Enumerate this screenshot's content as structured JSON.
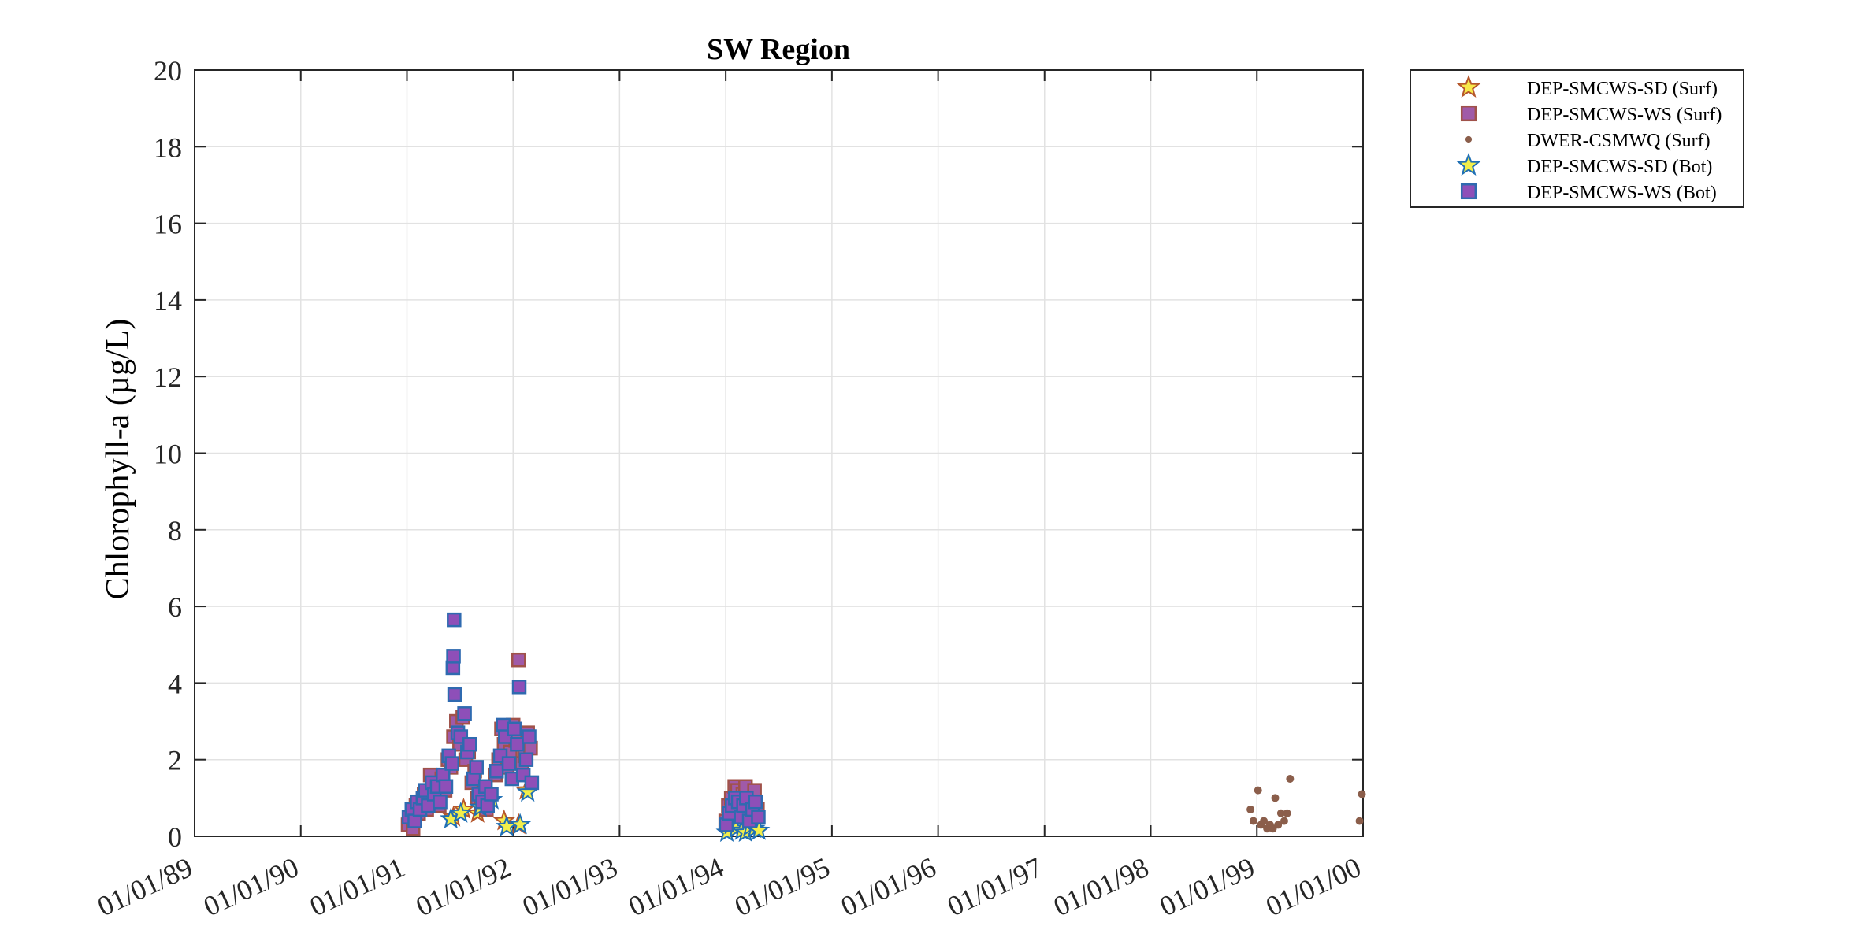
{
  "chart_data": {
    "type": "scatter",
    "title": "SW Region",
    "xlabel": "",
    "ylabel": "Chlorophyll-a (µg/L)",
    "x_is_date": true,
    "xlim": [
      "1989-01-01",
      "2000-01-01"
    ],
    "ylim": [
      0,
      20
    ],
    "xticks": [
      "1989-01-01",
      "1990-01-01",
      "1991-01-01",
      "1992-01-01",
      "1993-01-01",
      "1994-01-01",
      "1995-01-01",
      "1996-01-01",
      "1997-01-01",
      "1998-01-01",
      "1999-01-01",
      "2000-01-01"
    ],
    "xtick_labels": [
      "01/01/89",
      "01/01/90",
      "01/01/91",
      "01/01/92",
      "01/01/93",
      "01/01/94",
      "01/01/95",
      "01/01/96",
      "01/01/97",
      "01/01/98",
      "01/01/99",
      "01/01/00"
    ],
    "yticks": [
      0,
      2,
      4,
      6,
      8,
      10,
      12,
      14,
      16,
      18,
      20
    ],
    "ytick_labels": [
      "0",
      "2",
      "4",
      "6",
      "8",
      "10",
      "12",
      "14",
      "16",
      "18",
      "20"
    ],
    "grid": true,
    "legend_position": "outside-top-right",
    "series": [
      {
        "name": "DEP-SMCWS-SD (Surf)",
        "marker": "star",
        "fill": "#f7e94a",
        "stroke": "#b5562b",
        "points": [
          [
            "1991-06-10",
            0.5
          ],
          [
            "1991-07-15",
            0.7
          ],
          [
            "1991-09-01",
            0.6
          ],
          [
            "1991-10-05",
            0.9
          ],
          [
            "1991-12-01",
            0.4
          ],
          [
            "1992-01-20",
            0.3
          ],
          [
            "1992-02-15",
            1.2
          ]
        ]
      },
      {
        "name": "DEP-SMCWS-WS (Surf)",
        "marker": "square",
        "fill": "#a05aa8",
        "stroke": "#a0524a",
        "points": [
          [
            "1991-01-05",
            0.3
          ],
          [
            "1991-01-12",
            0.5
          ],
          [
            "1991-01-22",
            0.2
          ],
          [
            "1991-02-01",
            0.8
          ],
          [
            "1991-02-10",
            0.6
          ],
          [
            "1991-02-20",
            0.9
          ],
          [
            "1991-03-01",
            1.1
          ],
          [
            "1991-03-10",
            0.7
          ],
          [
            "1991-03-22",
            1.6
          ],
          [
            "1991-04-01",
            1.0
          ],
          [
            "1991-04-12",
            1.3
          ],
          [
            "1991-04-22",
            0.8
          ],
          [
            "1991-05-01",
            1.5
          ],
          [
            "1991-05-12",
            1.2
          ],
          [
            "1991-05-22",
            2.0
          ],
          [
            "1991-06-01",
            1.8
          ],
          [
            "1991-06-10",
            2.6
          ],
          [
            "1991-06-20",
            3.0
          ],
          [
            "1991-07-01",
            2.4
          ],
          [
            "1991-07-12",
            3.1
          ],
          [
            "1991-07-22",
            2.0
          ],
          [
            "1991-08-01",
            2.2
          ],
          [
            "1991-08-12",
            1.4
          ],
          [
            "1991-08-22",
            1.7
          ],
          [
            "1991-09-01",
            1.0
          ],
          [
            "1991-09-12",
            0.8
          ],
          [
            "1991-09-22",
            1.2
          ],
          [
            "1991-10-01",
            0.7
          ],
          [
            "1991-10-12",
            1.0
          ],
          [
            "1991-11-01",
            1.6
          ],
          [
            "1991-11-12",
            2.0
          ],
          [
            "1991-11-22",
            2.8
          ],
          [
            "1991-12-01",
            2.4
          ],
          [
            "1991-12-12",
            1.8
          ],
          [
            "1991-12-22",
            2.2
          ],
          [
            "1992-01-01",
            2.9
          ],
          [
            "1992-01-10",
            2.5
          ],
          [
            "1992-01-20",
            4.6
          ],
          [
            "1992-02-01",
            1.9
          ],
          [
            "1992-02-10",
            2.1
          ],
          [
            "1992-02-20",
            2.7
          ],
          [
            "1992-03-01",
            2.3
          ],
          [
            "1994-01-01",
            0.4
          ],
          [
            "1994-01-10",
            0.8
          ],
          [
            "1994-01-20",
            1.0
          ],
          [
            "1994-02-01",
            1.3
          ],
          [
            "1994-02-10",
            1.2
          ],
          [
            "1994-02-20",
            0.9
          ],
          [
            "1994-03-01",
            1.1
          ],
          [
            "1994-03-10",
            1.3
          ],
          [
            "1994-03-20",
            0.6
          ],
          [
            "1994-04-01",
            0.9
          ],
          [
            "1994-04-10",
            1.2
          ],
          [
            "1994-04-20",
            0.7
          ]
        ]
      },
      {
        "name": "DWER-CSMWQ (Surf)",
        "marker": "dot",
        "fill": "#8b5e4b",
        "stroke": "#8b5e4b",
        "points": [
          [
            "1998-12-10",
            0.7
          ],
          [
            "1998-12-20",
            0.4
          ],
          [
            "1999-01-05",
            1.2
          ],
          [
            "1999-01-15",
            0.3
          ],
          [
            "1999-01-25",
            0.4
          ],
          [
            "1999-02-05",
            0.2
          ],
          [
            "1999-02-15",
            0.3
          ],
          [
            "1999-02-25",
            0.2
          ],
          [
            "1999-03-05",
            1.0
          ],
          [
            "1999-03-15",
            0.3
          ],
          [
            "1999-03-25",
            0.6
          ],
          [
            "1999-04-05",
            0.4
          ],
          [
            "1999-04-15",
            0.6
          ],
          [
            "1999-04-25",
            1.5
          ],
          [
            "1999-12-20",
            0.4
          ],
          [
            "1999-12-28",
            1.1
          ]
        ]
      },
      {
        "name": "DEP-SMCWS-SD (Bot)",
        "marker": "star",
        "fill": "#f2ee4a",
        "stroke": "#1f6fb4",
        "points": [
          [
            "1991-06-01",
            0.45
          ],
          [
            "1991-07-05",
            0.6
          ],
          [
            "1991-09-10",
            0.75
          ],
          [
            "1991-10-20",
            0.95
          ],
          [
            "1991-12-10",
            0.25
          ],
          [
            "1992-01-25",
            0.3
          ],
          [
            "1992-02-20",
            1.15
          ],
          [
            "1994-01-05",
            0.1
          ],
          [
            "1994-01-20",
            0.3
          ],
          [
            "1994-02-05",
            0.2
          ],
          [
            "1994-02-25",
            0.15
          ],
          [
            "1994-03-10",
            0.1
          ],
          [
            "1994-03-25",
            0.25
          ],
          [
            "1994-04-10",
            0.2
          ],
          [
            "1994-04-25",
            0.15
          ]
        ]
      },
      {
        "name": "DEP-SMCWS-WS (Bot)",
        "marker": "square",
        "fill": "#8e4fb8",
        "stroke": "#2f6ab0",
        "points": [
          [
            "1991-01-08",
            0.5
          ],
          [
            "1991-01-18",
            0.7
          ],
          [
            "1991-01-28",
            0.4
          ],
          [
            "1991-02-05",
            0.9
          ],
          [
            "1991-02-15",
            0.7
          ],
          [
            "1991-02-25",
            1.0
          ],
          [
            "1991-03-05",
            1.2
          ],
          [
            "1991-03-15",
            0.8
          ],
          [
            "1991-03-28",
            1.4
          ],
          [
            "1991-04-05",
            1.1
          ],
          [
            "1991-04-15",
            1.3
          ],
          [
            "1991-04-25",
            0.9
          ],
          [
            "1991-05-05",
            1.6
          ],
          [
            "1991-05-15",
            1.3
          ],
          [
            "1991-05-25",
            2.1
          ],
          [
            "1991-06-05",
            1.9
          ],
          [
            "1991-06-08",
            4.4
          ],
          [
            "1991-06-10",
            4.7
          ],
          [
            "1991-06-12",
            5.65
          ],
          [
            "1991-06-14",
            3.7
          ],
          [
            "1991-06-25",
            2.7
          ],
          [
            "1991-07-05",
            2.6
          ],
          [
            "1991-07-18",
            3.2
          ],
          [
            "1991-07-28",
            2.2
          ],
          [
            "1991-08-05",
            2.4
          ],
          [
            "1991-08-18",
            1.5
          ],
          [
            "1991-08-28",
            1.8
          ],
          [
            "1991-09-05",
            1.1
          ],
          [
            "1991-09-18",
            0.9
          ],
          [
            "1991-09-28",
            1.3
          ],
          [
            "1991-10-05",
            0.8
          ],
          [
            "1991-10-18",
            1.1
          ],
          [
            "1991-11-05",
            1.7
          ],
          [
            "1991-11-18",
            2.1
          ],
          [
            "1991-11-28",
            2.9
          ],
          [
            "1991-12-05",
            2.6
          ],
          [
            "1991-12-18",
            1.9
          ],
          [
            "1991-12-28",
            1.5
          ],
          [
            "1992-01-05",
            2.8
          ],
          [
            "1992-01-15",
            2.4
          ],
          [
            "1992-01-22",
            3.9
          ],
          [
            "1992-02-05",
            1.6
          ],
          [
            "1992-02-15",
            2.0
          ],
          [
            "1992-02-25",
            2.6
          ],
          [
            "1992-03-05",
            1.4
          ],
          [
            "1994-01-03",
            0.3
          ],
          [
            "1994-01-13",
            0.6
          ],
          [
            "1994-01-23",
            0.8
          ],
          [
            "1994-02-03",
            1.0
          ],
          [
            "1994-02-13",
            0.9
          ],
          [
            "1994-02-23",
            0.5
          ],
          [
            "1994-03-03",
            0.8
          ],
          [
            "1994-03-13",
            1.0
          ],
          [
            "1994-03-23",
            0.4
          ],
          [
            "1994-04-03",
            0.7
          ],
          [
            "1994-04-13",
            0.9
          ],
          [
            "1994-04-23",
            0.5
          ]
        ]
      }
    ]
  }
}
